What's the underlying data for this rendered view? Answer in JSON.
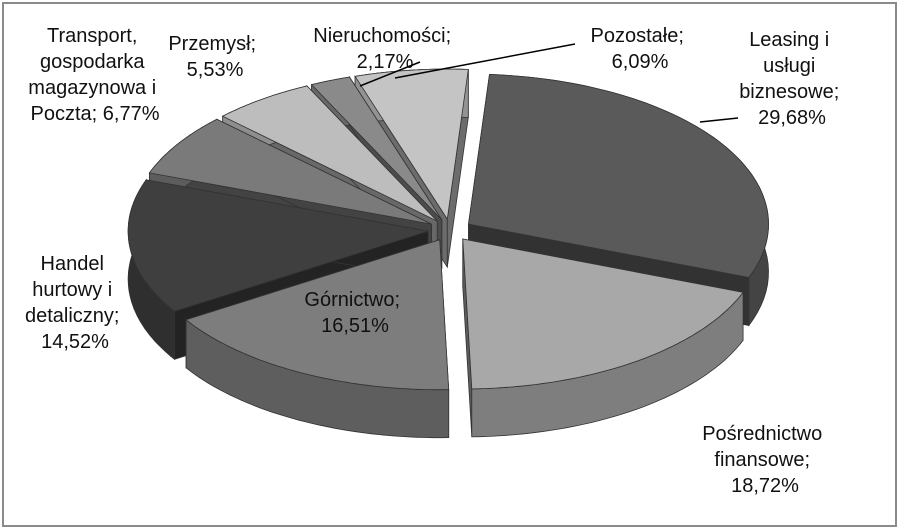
{
  "chart_data": {
    "type": "pie",
    "values": [
      29.68,
      18.72,
      16.51,
      14.52,
      6.77,
      5.53,
      2.17,
      6.09
    ],
    "value_labels": [
      "Leasing i usługi biznesowe; 29,68%",
      "Pośrednictwo finansowe; 18,72%",
      "Górnictwo; 16,51%",
      "Handel hurtowy i detaliczny; 14,52%",
      "Transport, gospodarka magazynowa i Poczta; 6,77%",
      "Przemysł; 5,53%",
      "Nieruchomości; 2,17%",
      "Pozostałe; 6,09%"
    ],
    "colors": [
      "#5a5a5a",
      "#a8a8a8",
      "#7d7d7d",
      "#3f3f3f",
      "#7a7a7a",
      "#bdbdbd",
      "#8a8a8a",
      "#c4c4c4"
    ]
  }
}
